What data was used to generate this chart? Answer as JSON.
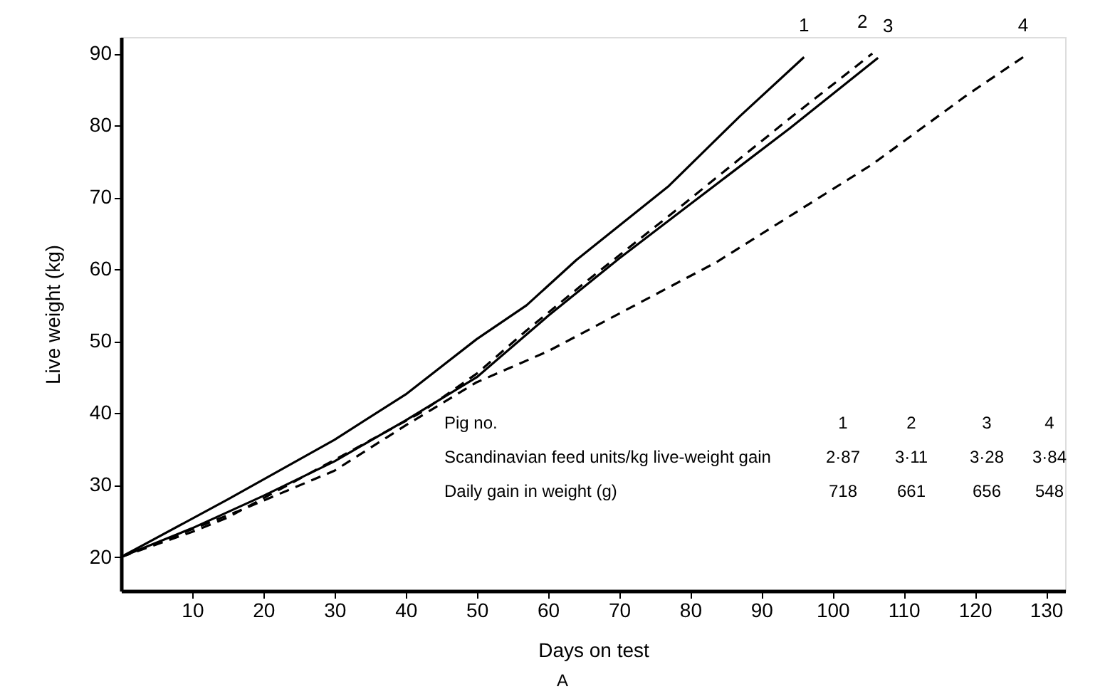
{
  "chart_data": {
    "type": "line",
    "xlabel": "Days on test",
    "ylabel": "Live weight (kg)",
    "xlim": [
      0,
      132.7
    ],
    "ylim": [
      15.3,
      92.3
    ],
    "xticks": [
      10,
      20,
      30,
      40,
      50,
      60,
      70,
      80,
      90,
      100,
      110,
      120,
      130
    ],
    "yticks": [
      20,
      30,
      40,
      50,
      60,
      70,
      80,
      90
    ],
    "grid": false,
    "marker": "none",
    "series": [
      {
        "name": "1",
        "color": "#000000",
        "line_style": "solid",
        "x": [
          0,
          15,
          30,
          40,
          50,
          57,
          64,
          77,
          87,
          96
        ],
        "values": [
          20,
          28,
          36.3,
          42.6,
          50.3,
          55,
          61.3,
          71.6,
          81.3,
          89.5
        ]
      },
      {
        "name": "2",
        "color": "#000000",
        "line_style": "dashed",
        "x": [
          0,
          10,
          15,
          30,
          42,
          50,
          57,
          65,
          79,
          94,
          105.6
        ],
        "values": [
          20,
          23.5,
          25.5,
          33.5,
          40,
          45.5,
          51.5,
          58,
          69,
          81,
          90
        ]
      },
      {
        "name": "3",
        "color": "#000000",
        "line_style": "solid",
        "x": [
          0,
          10,
          20,
          30,
          40,
          50,
          60,
          70,
          79,
          94,
          106.4
        ],
        "values": [
          20,
          24,
          28.5,
          33.3,
          39,
          45,
          53.5,
          61.5,
          68.3,
          79.6,
          89.4
        ]
      },
      {
        "name": "4",
        "color": "#000000",
        "line_style": "dashed",
        "x": [
          0,
          16.3,
          30,
          40,
          50,
          60,
          83.7,
          105.6,
          119,
          126.8
        ],
        "values": [
          20,
          26.3,
          32,
          38.3,
          44.3,
          48.6,
          61,
          74.6,
          84.3,
          89.5
        ]
      }
    ],
    "annotations": [
      "Pig no.",
      "1",
      "2",
      "3",
      "4",
      "Scandinavian feed units/kg live-weight gain",
      "2·87",
      "3·11",
      "3·28",
      "3·84",
      "Daily gain in weight (g)",
      "718",
      "661",
      "656",
      "548",
      "A"
    ]
  }
}
